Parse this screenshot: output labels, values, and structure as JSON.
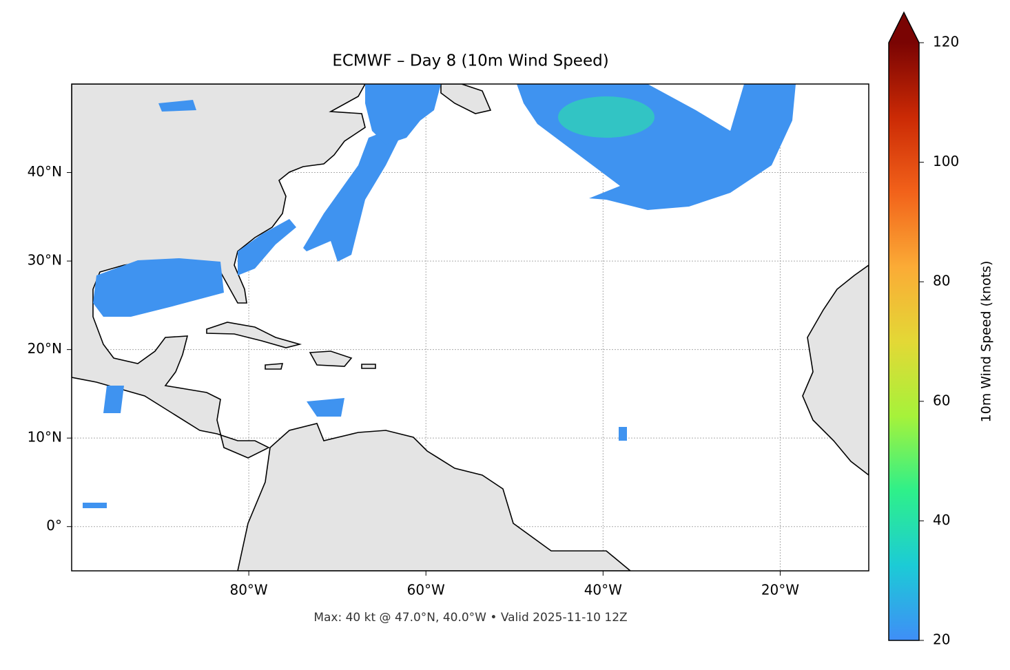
{
  "chart_data": {
    "type": "map",
    "title": "ECMWF – Day 8 (10m Wind Speed)",
    "footer": "Max: 40 kt @ 47.0°N, 40.0°W • Valid 2025-11-10 12Z",
    "xlim": [
      -100,
      -10
    ],
    "ylim": [
      -5,
      50
    ],
    "xticks": [
      {
        "value": -80,
        "label": "80°W"
      },
      {
        "value": -60,
        "label": "60°W"
      },
      {
        "value": -40,
        "label": "40°W"
      },
      {
        "value": -20,
        "label": "20°W"
      }
    ],
    "yticks": [
      {
        "value": 0,
        "label": "0°"
      },
      {
        "value": 10,
        "label": "10°N"
      },
      {
        "value": 20,
        "label": "20°N"
      },
      {
        "value": 30,
        "label": "30°N"
      },
      {
        "value": 40,
        "label": "40°N"
      }
    ],
    "grid": true,
    "colorbar": {
      "label": "10m Wind Speed (knots)",
      "lim": [
        20,
        120
      ],
      "ticks": [
        20,
        40,
        60,
        80,
        100,
        120
      ],
      "colors": [
        "#3f8ef7",
        "#1ccbd6",
        "#2ef08a",
        "#a6f23a",
        "#e3d836",
        "#fbab36",
        "#f2621a",
        "#cb2a05",
        "#7a0403"
      ],
      "extend_color": "#7a0403"
    }
  }
}
